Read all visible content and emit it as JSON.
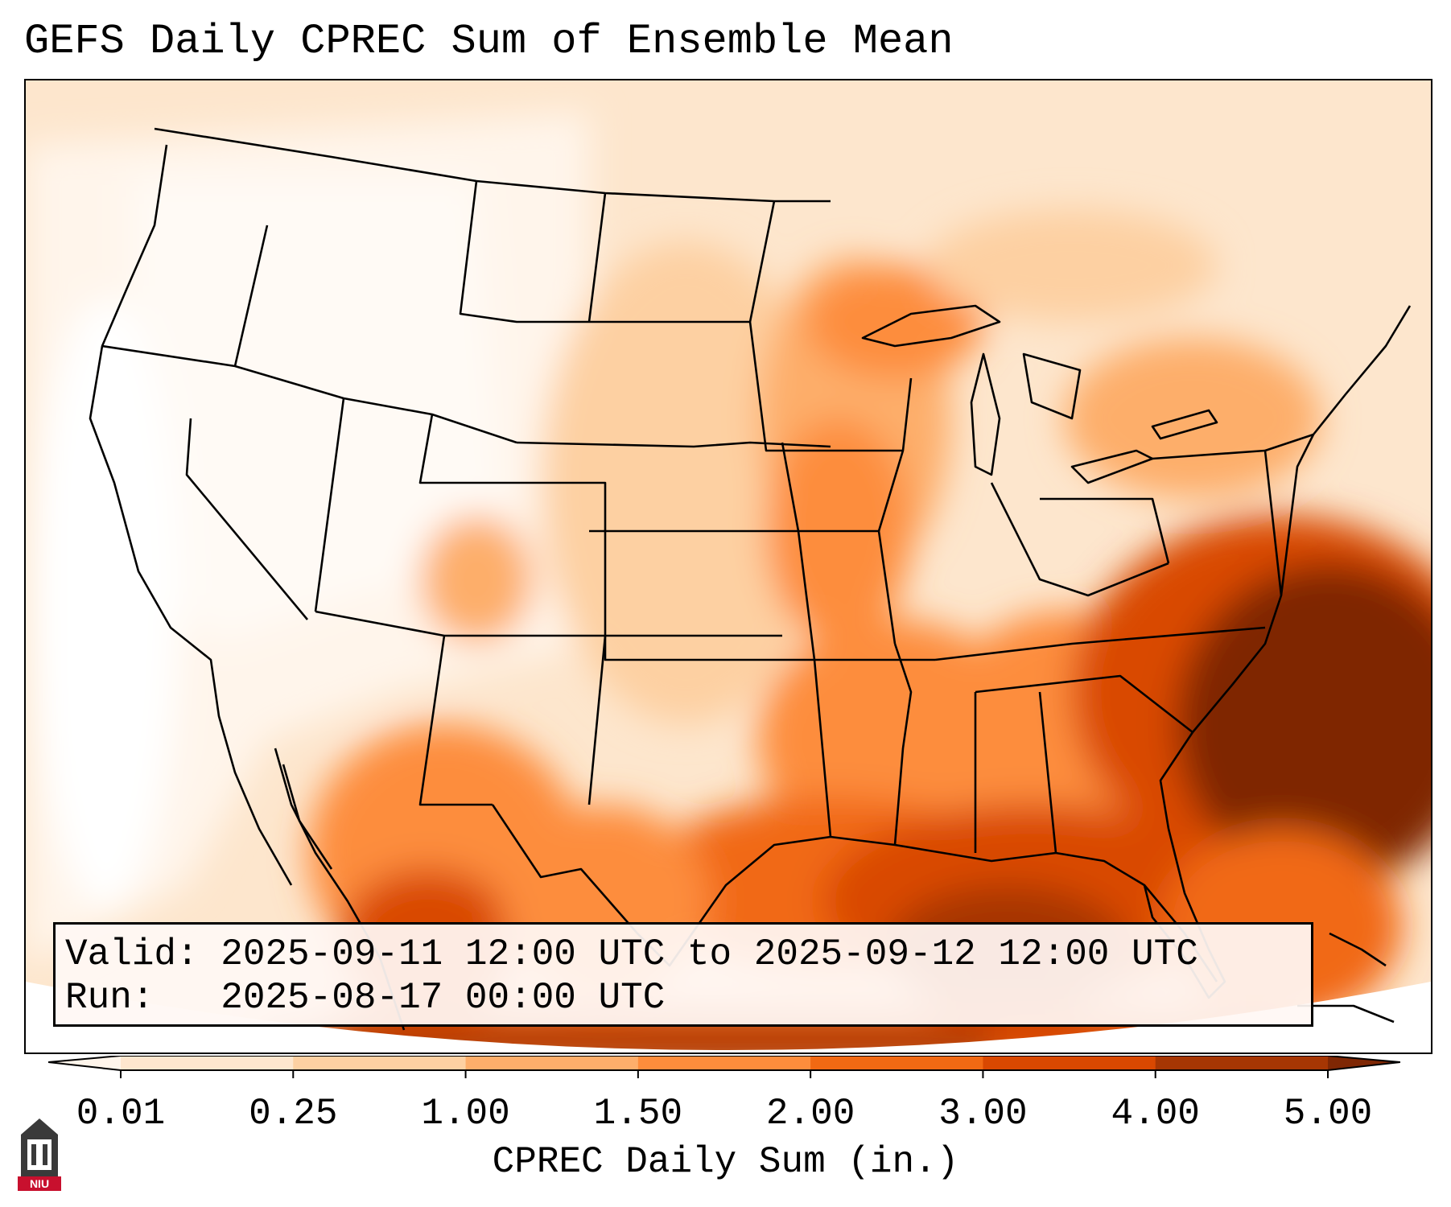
{
  "title": "GEFS Daily CPREC Sum of Ensemble Mean",
  "info": {
    "valid": "Valid: 2025-09-11 12:00 UTC to 2025-09-12 12:00 UTC",
    "run": "Run:   2025-08-17 00:00 UTC"
  },
  "colorbar": {
    "label": "CPREC Daily Sum (in.)",
    "ticks": [
      "0.01",
      "0.25",
      "1.00",
      "1.50",
      "2.00",
      "3.00",
      "4.00",
      "5.00"
    ],
    "colors": [
      "#fee6ce",
      "#fdd0a2",
      "#fdae6b",
      "#fd8d3c",
      "#f16913",
      "#d94801",
      "#a63603"
    ],
    "under_color": "#fff5eb",
    "over_color": "#7f2704"
  },
  "logo": {
    "text": "NIU",
    "color": "#c8102e"
  }
}
